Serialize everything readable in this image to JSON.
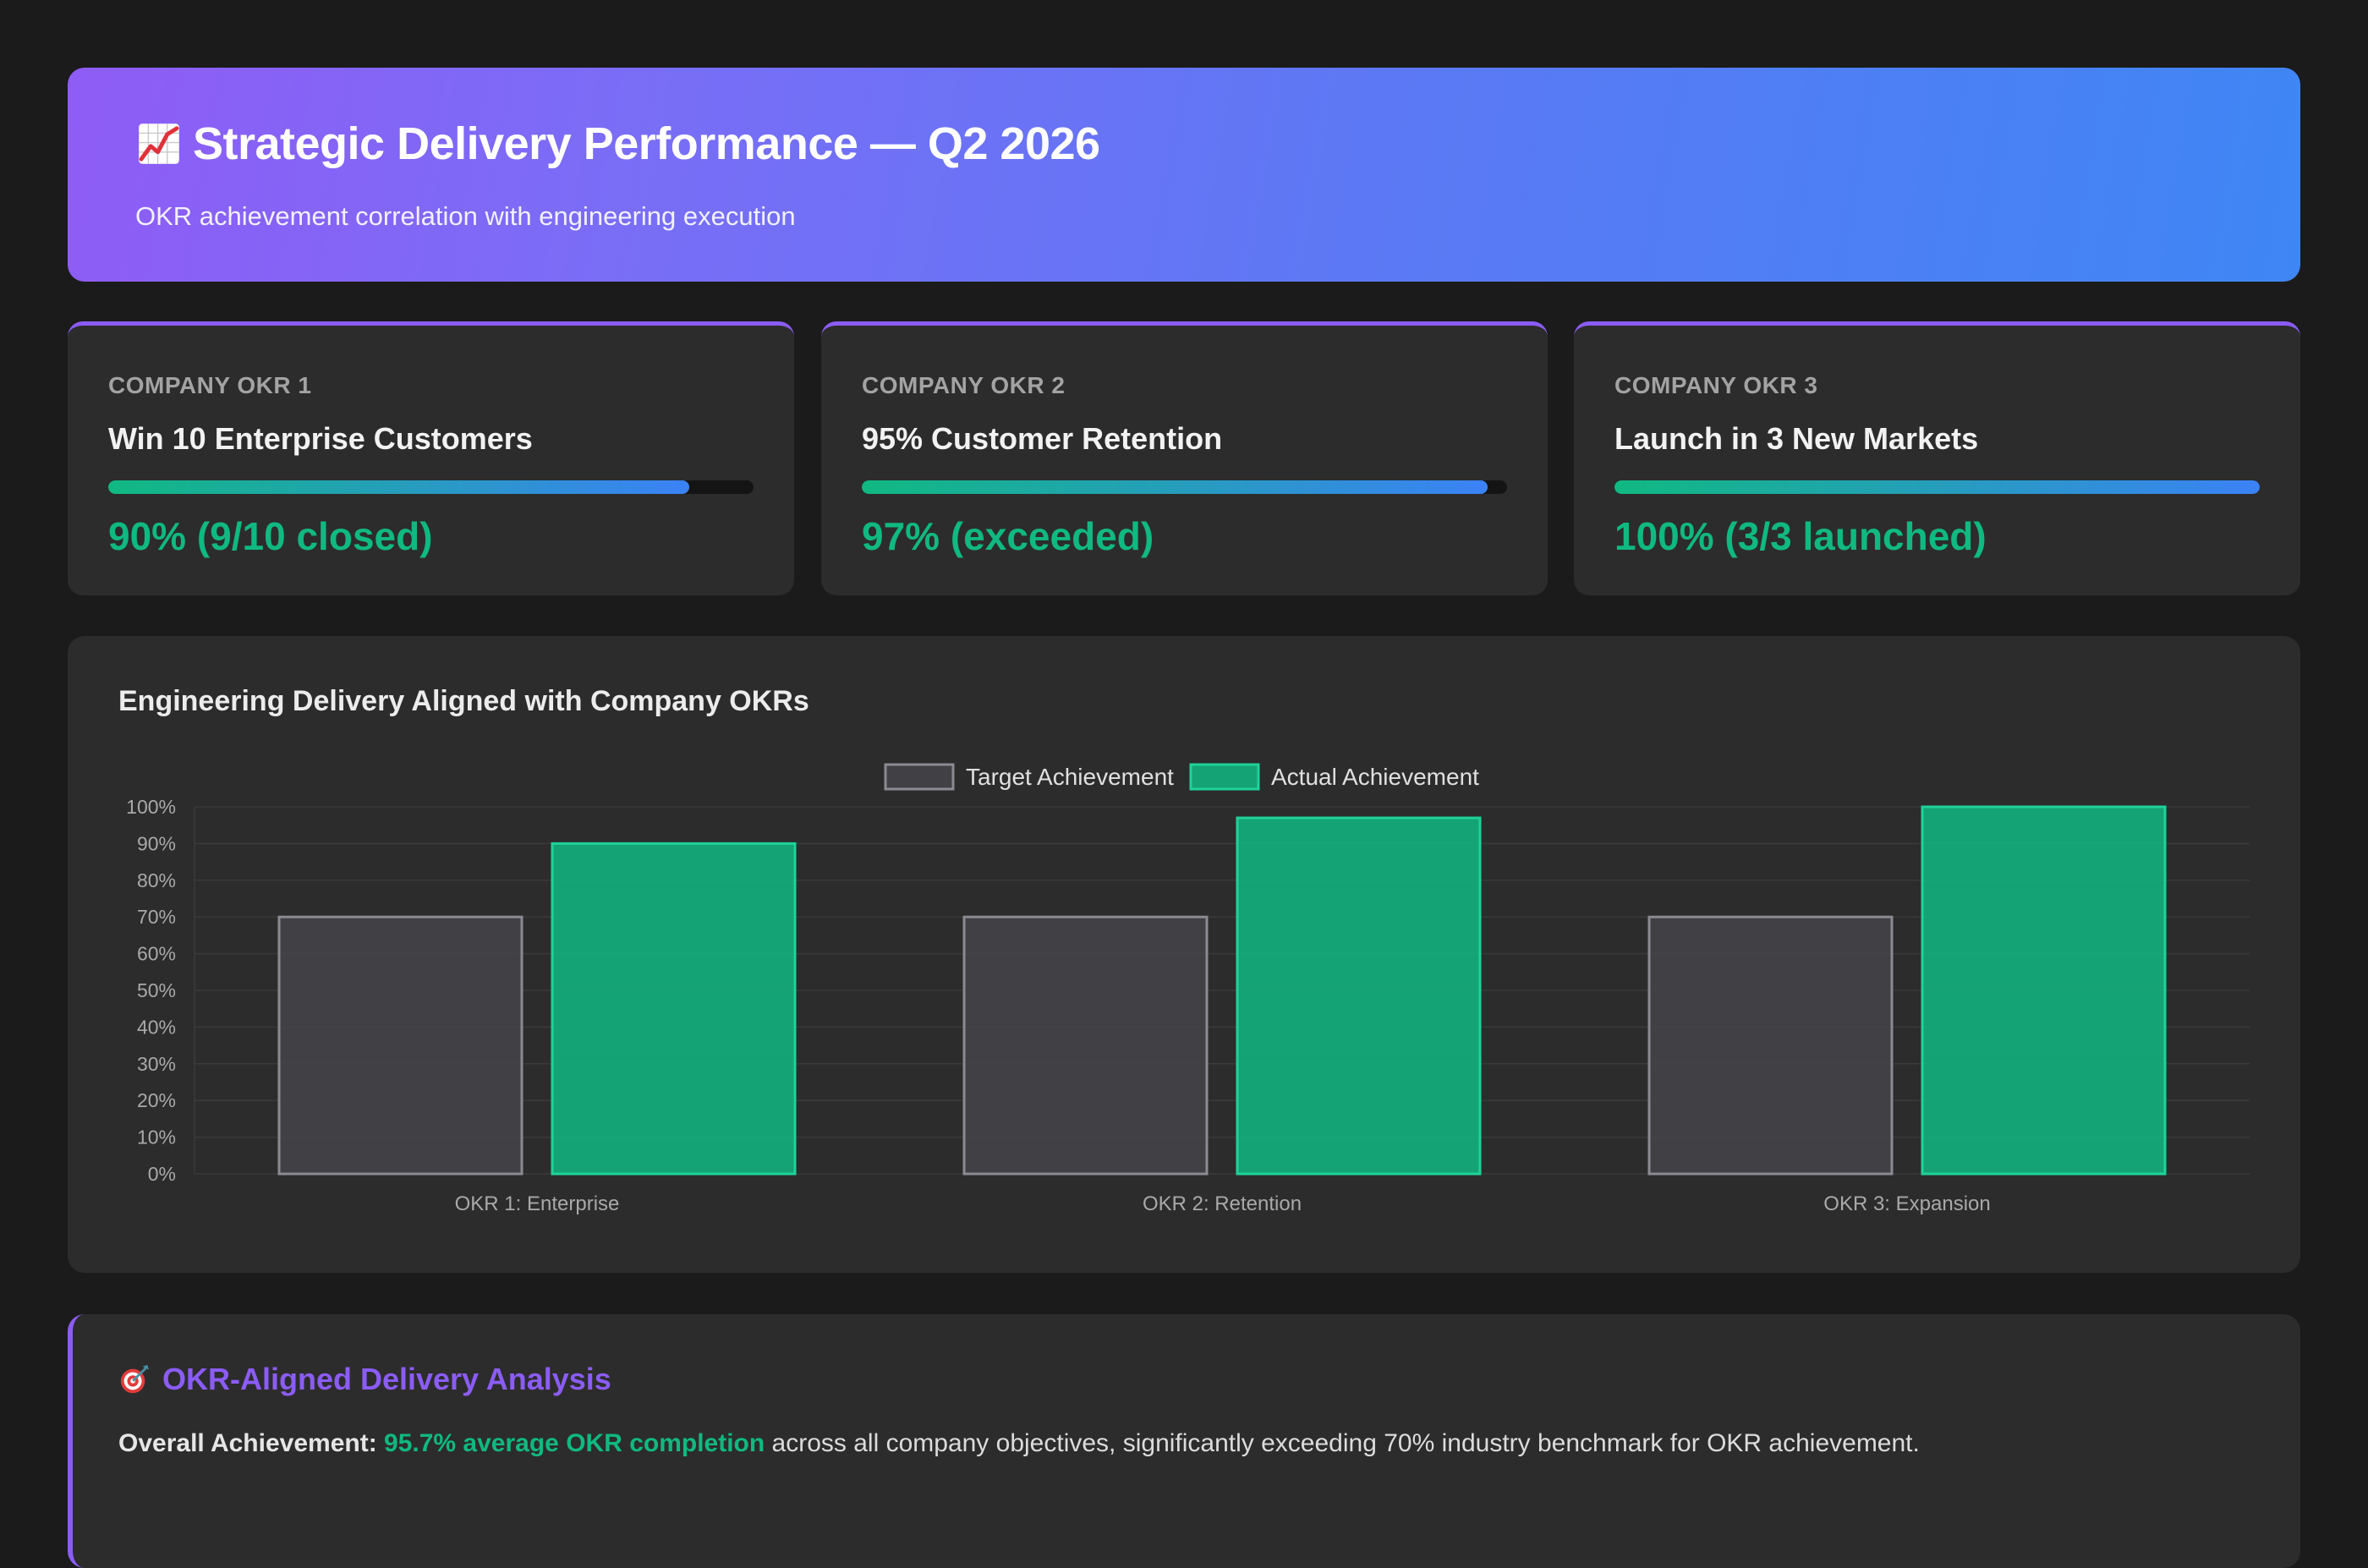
{
  "header": {
    "title": "Strategic Delivery Performance — Q2 2026",
    "subtitle": "OKR achievement correlation with engineering execution",
    "icon": "chart-increasing-icon"
  },
  "okrs": [
    {
      "label": "COMPANY OKR 1",
      "name": "Win 10 Enterprise Customers",
      "progress": 0.9,
      "result": "90% (9/10 closed)"
    },
    {
      "label": "COMPANY OKR 2",
      "name": "95% Customer Retention",
      "progress": 0.97,
      "result": "97% (exceeded)"
    },
    {
      "label": "COMPANY OKR 3",
      "name": "Launch in 3 New Markets",
      "progress": 1.0,
      "result": "100% (3/3 launched)"
    }
  ],
  "colors": {
    "accent": "#8b5cf6",
    "success": "#10b981",
    "blue": "#3b82f6",
    "target_bar": "#45454a",
    "target_border": "#8a8a92"
  },
  "chart_data": {
    "type": "bar",
    "title": "Engineering Delivery Aligned with Company OKRs",
    "categories": [
      "OKR 1: Enterprise",
      "OKR 2: Retention",
      "OKR 3: Expansion"
    ],
    "series": [
      {
        "name": "Target Achievement",
        "values": [
          70,
          70,
          70
        ]
      },
      {
        "name": "Actual Achievement",
        "values": [
          90,
          97,
          100
        ]
      }
    ],
    "ylim": [
      0,
      100
    ],
    "yticks": [
      0,
      10,
      20,
      30,
      40,
      50,
      60,
      70,
      80,
      90,
      100
    ],
    "tick_suffix": "%",
    "legend": "top-center",
    "grid": true
  },
  "analysis": {
    "title": "OKR-Aligned Delivery Analysis",
    "lead": "Overall Achievement:",
    "highlight": "95.7% average OKR completion",
    "rest": " across all company objectives, significantly exceeding 70% industry benchmark for OKR achievement.",
    "icon": "direct-hit-icon"
  }
}
